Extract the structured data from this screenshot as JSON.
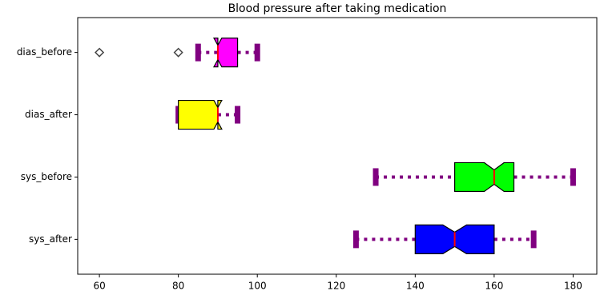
{
  "chart_data": {
    "type": "boxplot",
    "title": "Blood pressure after taking medication",
    "orientation": "horizontal",
    "notch": true,
    "categories": [
      "sys_after",
      "sys_before",
      "dias_after",
      "dias_before"
    ],
    "colors": [
      "#0000ff",
      "#00ff00",
      "#ffff00",
      "#ff00ff"
    ],
    "whisker_color": "#800080",
    "median_color": "#ff0000",
    "boxes": [
      {
        "whisker_low": 125,
        "q1": 140,
        "median": 150,
        "q3": 160,
        "whisker_high": 170,
        "notch_low": 147,
        "notch_high": 153,
        "fliers": []
      },
      {
        "whisker_low": 130,
        "q1": 150,
        "median": 160,
        "q3": 165,
        "whisker_high": 180,
        "notch_low": 157.5,
        "notch_high": 162.5,
        "fliers": []
      },
      {
        "whisker_low": 80,
        "q1": 80,
        "median": 90,
        "q3": 90,
        "whisker_high": 95,
        "notch_low": 89,
        "notch_high": 91,
        "fliers": []
      },
      {
        "whisker_low": 85,
        "q1": 90,
        "median": 90,
        "q3": 95,
        "whisker_high": 100,
        "notch_low": 89,
        "notch_high": 91,
        "fliers": [
          60,
          80
        ]
      }
    ],
    "xlim": [
      54.5,
      186
    ],
    "xticks": [
      60,
      80,
      100,
      120,
      140,
      160,
      180
    ]
  }
}
